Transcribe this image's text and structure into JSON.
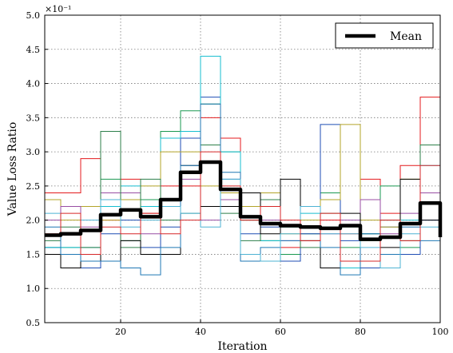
{
  "chart_data": {
    "type": "line",
    "xlabel": "Iteration",
    "ylabel": "Value Loss Ratio",
    "y_multiplier_label": "×10⁻¹",
    "xlim": [
      1,
      100
    ],
    "ylim": [
      0.5,
      5.0
    ],
    "x_ticks": [
      20,
      40,
      60,
      80,
      100
    ],
    "y_ticks": [
      0.5,
      1.0,
      1.5,
      2.0,
      2.5,
      3.0,
      3.5,
      4.0,
      4.5,
      5.0
    ],
    "y_tick_labels": [
      "0.5",
      "1.0",
      "1.5",
      "2.0",
      "2.5",
      "3.0",
      "3.5",
      "4.0",
      "4.5",
      "5.0"
    ],
    "grid": true,
    "legend_position": "top-right",
    "x": [
      1,
      5,
      10,
      15,
      20,
      25,
      30,
      35,
      40,
      45,
      50,
      55,
      60,
      65,
      70,
      75,
      80,
      85,
      90,
      95,
      100
    ],
    "series": [
      {
        "name": "Mean",
        "color": "#000000",
        "emphasis": true,
        "values": [
          1.78,
          1.8,
          1.85,
          2.08,
          2.15,
          2.05,
          2.3,
          2.7,
          2.85,
          2.45,
          2.05,
          1.95,
          1.92,
          1.9,
          1.88,
          1.92,
          1.72,
          1.75,
          1.95,
          2.25,
          1.75
        ]
      },
      {
        "color": "#e41a1c",
        "values": [
          2.4,
          2.4,
          2.9,
          2.0,
          2.6,
          2.1,
          2.5,
          2.5,
          3.5,
          3.2,
          2.0,
          2.2,
          1.6,
          1.9,
          2.0,
          1.8,
          2.6,
          2.1,
          2.8,
          3.8,
          2.4
        ]
      },
      {
        "color": "#1a9850",
        "values": [
          1.6,
          1.6,
          1.3,
          2.6,
          1.7,
          2.3,
          3.3,
          3.6,
          3.7,
          3.0,
          2.0,
          1.7,
          1.5,
          1.8,
          2.4,
          1.6,
          1.7,
          2.5,
          1.6,
          2.4,
          2.6
        ]
      },
      {
        "color": "#1f4eb4",
        "values": [
          1.6,
          1.3,
          1.3,
          1.8,
          2.0,
          1.6,
          1.9,
          3.2,
          3.8,
          2.6,
          1.8,
          1.9,
          1.4,
          1.8,
          3.4,
          1.7,
          1.3,
          1.9,
          1.5,
          2.0,
          1.6
        ]
      },
      {
        "color": "#17becf",
        "values": [
          1.6,
          1.6,
          1.6,
          2.2,
          2.5,
          2.2,
          3.2,
          3.3,
          4.4,
          3.0,
          2.4,
          1.7,
          1.9,
          2.1,
          1.9,
          1.3,
          1.8,
          1.5,
          2.0,
          2.8,
          1.5
        ]
      },
      {
        "color": "#b3a42a",
        "values": [
          2.3,
          2.0,
          2.2,
          2.0,
          2.3,
          2.5,
          3.0,
          3.0,
          2.5,
          2.4,
          2.2,
          2.4,
          1.8,
          2.0,
          2.3,
          3.4,
          2.0,
          1.9,
          2.6,
          3.1,
          3.0
        ]
      },
      {
        "color": "#984ea3",
        "values": [
          2.0,
          2.2,
          1.9,
          2.4,
          2.4,
          1.8,
          2.3,
          2.6,
          2.0,
          2.3,
          2.4,
          2.0,
          1.7,
          2.2,
          1.8,
          2.0,
          2.3,
          1.8,
          2.1,
          2.4,
          2.0
        ]
      },
      {
        "color": "#2d7f4a",
        "values": [
          1.7,
          1.9,
          1.6,
          3.3,
          1.6,
          2.6,
          2.0,
          2.1,
          3.1,
          2.1,
          1.7,
          2.3,
          1.9,
          1.6,
          2.1,
          1.9,
          1.8,
          2.0,
          1.7,
          3.1,
          1.1
        ]
      },
      {
        "color": "#000000",
        "values": [
          1.5,
          1.3,
          1.5,
          1.4,
          1.7,
          1.5,
          1.5,
          2.8,
          2.2,
          2.2,
          2.4,
          1.8,
          2.6,
          1.7,
          1.3,
          2.1,
          1.4,
          1.6,
          2.6,
          2.0,
          2.3
        ]
      },
      {
        "color": "#1f77b4",
        "values": [
          1.9,
          1.5,
          1.4,
          1.4,
          1.3,
          1.2,
          1.6,
          2.8,
          3.7,
          2.7,
          1.4,
          1.6,
          1.7,
          1.9,
          1.6,
          1.2,
          1.8,
          1.5,
          1.9,
          1.7,
          1.0
        ]
      },
      {
        "color": "#4eb3d3",
        "values": [
          2.1,
          1.8,
          2.0,
          2.3,
          1.9,
          2.0,
          2.2,
          2.1,
          1.9,
          2.6,
          1.5,
          1.4,
          1.8,
          2.2,
          1.8,
          1.8,
          1.6,
          1.3,
          1.8,
          1.9,
          1.3
        ]
      },
      {
        "color": "#d62728",
        "values": [
          1.8,
          2.1,
          1.5,
          1.9,
          1.8,
          2.1,
          1.8,
          2.0,
          3.0,
          2.5,
          2.0,
          2.2,
          2.0,
          1.7,
          2.1,
          1.4,
          1.4,
          2.0,
          1.7,
          2.8,
          2.0
        ]
      }
    ]
  }
}
